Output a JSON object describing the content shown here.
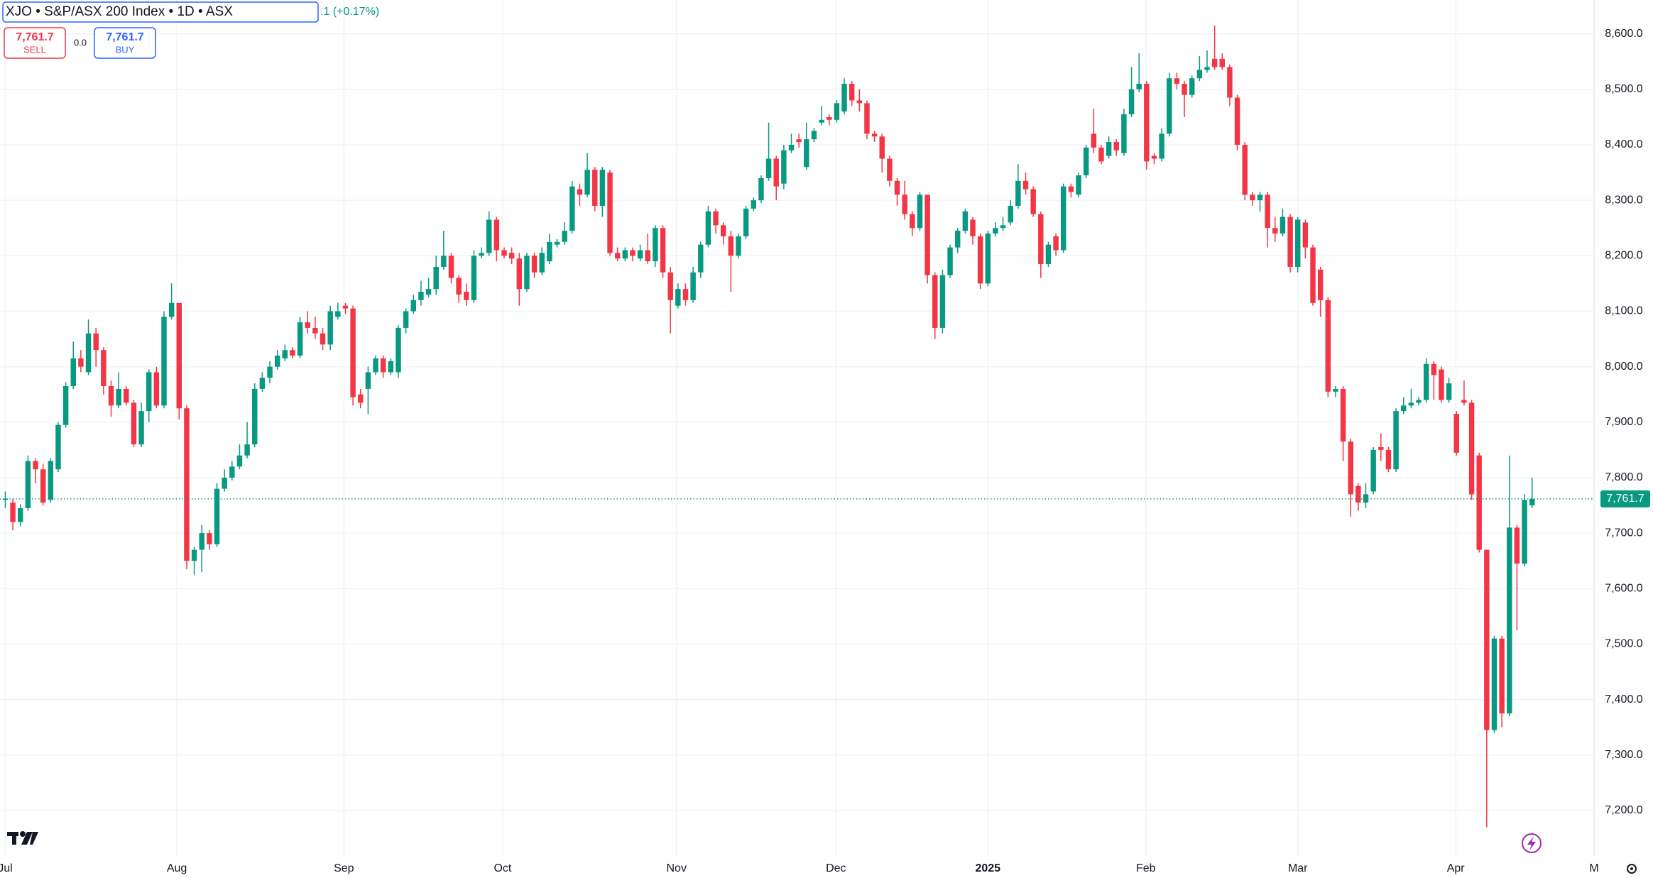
{
  "chart_data": {
    "type": "candlestick",
    "header": {
      "symbol": "XJO • S&P/ASX 200 Index • 1D • ASX",
      "change": ".1 (+0.17%)"
    },
    "sell": {
      "price": {
        "value": 7761.7,
        "label": "7,761.7"
      },
      "label": "SELL"
    },
    "spread": "0.0",
    "buy": {
      "price": {
        "value": 7761.7,
        "label": "7,761.7"
      },
      "label": "BUY"
    },
    "last_price": {
      "value": 7761.7,
      "label": "7,761.7"
    },
    "up_color": "#089981",
    "down_color": "#f23645",
    "grid": true,
    "xlim": [
      -0.7,
      210.2
    ],
    "xticks": [
      {
        "value": 0,
        "label": "Jul"
      },
      {
        "value": 22.7,
        "label": "Aug"
      },
      {
        "value": 44.8,
        "label": "Sep"
      },
      {
        "value": 65.8,
        "label": "Oct"
      },
      {
        "value": 88.8,
        "label": "Nov"
      },
      {
        "value": 109.9,
        "label": "Dec"
      },
      {
        "value": 130,
        "label": "2025"
      },
      {
        "value": 150.9,
        "label": "Feb"
      },
      {
        "value": 171,
        "label": "Mar"
      },
      {
        "value": 191.9,
        "label": "Apr"
      },
      {
        "value": 210.2,
        "label": "M"
      }
    ],
    "ylim": [
      7118,
      8661
    ],
    "yticks": [
      {
        "value": 7200,
        "label": "7,200.0"
      },
      {
        "value": 7300,
        "label": "7,300.0"
      },
      {
        "value": 7400,
        "label": "7,400.0"
      },
      {
        "value": 7500,
        "label": "7,500.0"
      },
      {
        "value": 7600,
        "label": "7,600.0"
      },
      {
        "value": 7700,
        "label": "7,700.0"
      },
      {
        "value": 7800,
        "label": "7,800.0"
      },
      {
        "value": 7900,
        "label": "7,900.0"
      },
      {
        "value": 8000,
        "label": "8,000.0"
      },
      {
        "value": 8100,
        "label": "8,100.0"
      },
      {
        "value": 8200,
        "label": "8,200.0"
      },
      {
        "value": 8300,
        "label": "8,300.0"
      },
      {
        "value": 8400,
        "label": "8,400.0"
      },
      {
        "value": 8500,
        "label": "8,500.0"
      },
      {
        "value": 8600,
        "label": "8,600.0"
      }
    ],
    "open": [
      7760,
      7755,
      7720,
      7745,
      7830,
      7815,
      7760,
      7815,
      7895,
      7965,
      8015,
      7990,
      8060,
      8030,
      7965,
      7930,
      7960,
      7935,
      7860,
      7920,
      7990,
      7930,
      8090,
      8115,
      7925,
      7650,
      7670,
      7700,
      7680,
      7780,
      7800,
      7820,
      7840,
      7860,
      7960,
      7980,
      8000,
      8015,
      8030,
      8020,
      8080,
      8070,
      8060,
      8040,
      8090,
      8110,
      8105,
      7950,
      7960,
      7990,
      8015,
      7990,
      7990,
      8070,
      8100,
      8120,
      8130,
      8140,
      8180,
      8200,
      8160,
      8135,
      8120,
      8200,
      8205,
      8265,
      8210,
      8205,
      8195,
      8140,
      8200,
      8170,
      8190,
      8220,
      8225,
      8245,
      8320,
      8310,
      8355,
      8290,
      8350,
      8205,
      8195,
      8210,
      8195,
      8210,
      8190,
      8250,
      8170,
      8110,
      8140,
      8120,
      8170,
      8220,
      8280,
      8255,
      8235,
      8200,
      8235,
      8285,
      8300,
      8340,
      8375,
      8330,
      8390,
      8410,
      8360,
      8410,
      8440,
      8450,
      8445,
      8460,
      8510,
      8480,
      8475,
      8420,
      8415,
      8375,
      8335,
      8310,
      8275,
      8250,
      8310,
      8165,
      8070,
      8165,
      8215,
      8245,
      8265,
      8235,
      8150,
      8240,
      8250,
      8260,
      8290,
      8335,
      8320,
      8275,
      8185,
      8235,
      8210,
      8325,
      8310,
      8345,
      8420,
      8395,
      8380,
      8405,
      8385,
      8455,
      8500,
      8510,
      8380,
      8375,
      8420,
      8520,
      8510,
      8490,
      8520,
      8535,
      8555,
      8555,
      8540,
      8485,
      8400,
      8310,
      8300,
      8310,
      8250,
      8240,
      8270,
      8180,
      8260,
      8215,
      8175,
      8120,
      7955,
      7960,
      7865,
      7785,
      7755,
      7775,
      7855,
      7850,
      7815,
      7920,
      7930,
      7935,
      7940,
      8005,
      7995,
      7940,
      7915,
      7940,
      7935,
      7840,
      7670,
      7345,
      7510,
      7375,
      7710,
      7645,
      7750
    ],
    "high": [
      7775,
      7762,
      7752,
      7840,
      7835,
      7825,
      7835,
      7900,
      7972,
      8045,
      8030,
      8085,
      8070,
      8035,
      7975,
      7990,
      7965,
      7940,
      7935,
      7995,
      8000,
      8100,
      8150,
      8115,
      7930,
      7675,
      7715,
      7705,
      7790,
      7815,
      7830,
      7860,
      7900,
      7970,
      7990,
      8010,
      8030,
      8040,
      8035,
      8090,
      8100,
      8090,
      8070,
      8110,
      8115,
      8115,
      8110,
      7960,
      8000,
      8020,
      8020,
      8015,
      8075,
      8105,
      8130,
      8155,
      8160,
      8200,
      8245,
      8205,
      8165,
      8150,
      8210,
      8215,
      8280,
      8270,
      8215,
      8215,
      8205,
      8205,
      8205,
      8215,
      8240,
      8230,
      8260,
      8335,
      8330,
      8385,
      8360,
      8360,
      8355,
      8215,
      8215,
      8215,
      8220,
      8240,
      8255,
      8255,
      8180,
      8150,
      8150,
      8180,
      8225,
      8290,
      8285,
      8260,
      8245,
      8240,
      8290,
      8305,
      8345,
      8440,
      8380,
      8400,
      8420,
      8420,
      8440,
      8430,
      8470,
      8455,
      8480,
      8520,
      8515,
      8500,
      8480,
      8425,
      8420,
      8380,
      8340,
      8335,
      8280,
      8315,
      8310,
      8170,
      8175,
      8220,
      8250,
      8285,
      8270,
      8240,
      8245,
      8260,
      8270,
      8300,
      8365,
      8350,
      8325,
      8280,
      8225,
      8240,
      8330,
      8330,
      8350,
      8400,
      8465,
      8400,
      8415,
      8410,
      8465,
      8540,
      8565,
      8515,
      8385,
      8430,
      8530,
      8530,
      8515,
      8525,
      8560,
      8570,
      8615,
      8565,
      8545,
      8490,
      8405,
      8315,
      8315,
      8315,
      8270,
      8285,
      8275,
      8270,
      8265,
      8220,
      8180,
      8125,
      7965,
      7965,
      7870,
      7790,
      7790,
      7855,
      7880,
      7855,
      7925,
      7945,
      7960,
      7945,
      8015,
      8010,
      8000,
      7980,
      7920,
      7975,
      7940,
      7845,
      7670,
      7515,
      7515,
      7840,
      7715,
      7770,
      7800
    ],
    "low": [
      7745,
      7705,
      7712,
      7740,
      7790,
      7750,
      7755,
      7810,
      7890,
      7960,
      7990,
      7985,
      8000,
      7950,
      7910,
      7925,
      7930,
      7855,
      7855,
      7900,
      7925,
      7925,
      8085,
      7905,
      7635,
      7625,
      7630,
      7670,
      7675,
      7775,
      7795,
      7815,
      7835,
      7855,
      7955,
      7970,
      7995,
      8010,
      8015,
      8015,
      8060,
      8050,
      8030,
      8030,
      8085,
      8095,
      7930,
      7925,
      7915,
      7985,
      7980,
      7985,
      7980,
      8060,
      8095,
      8110,
      8125,
      8130,
      8175,
      8150,
      8115,
      8110,
      8115,
      8195,
      8200,
      8190,
      8195,
      8185,
      8110,
      8135,
      8160,
      8165,
      8185,
      8215,
      8220,
      8240,
      8290,
      8305,
      8280,
      8270,
      8200,
      8190,
      8190,
      8190,
      8190,
      8185,
      8180,
      8160,
      8060,
      8105,
      8110,
      8115,
      8160,
      8215,
      8240,
      8220,
      8135,
      8195,
      8230,
      8280,
      8295,
      8335,
      8300,
      8320,
      8385,
      8395,
      8355,
      8405,
      8435,
      8435,
      8440,
      8455,
      8470,
      8460,
      8410,
      8405,
      8350,
      8325,
      8290,
      8265,
      8235,
      8245,
      8150,
      8050,
      8060,
      8160,
      8205,
      8240,
      8220,
      8140,
      8145,
      8235,
      8245,
      8255,
      8285,
      8310,
      8270,
      8160,
      8180,
      8200,
      8205,
      8305,
      8305,
      8340,
      8385,
      8365,
      8375,
      8380,
      8380,
      8450,
      8495,
      8355,
      8365,
      8370,
      8415,
      8500,
      8450,
      8485,
      8515,
      8530,
      8535,
      8535,
      8470,
      8390,
      8300,
      8290,
      8280,
      8215,
      8225,
      8235,
      8170,
      8170,
      8195,
      8110,
      8090,
      7945,
      7945,
      7830,
      7730,
      7740,
      7745,
      7770,
      7830,
      7810,
      7810,
      7915,
      7925,
      7930,
      7935,
      7940,
      7935,
      7935,
      7840,
      7930,
      7760,
      7665,
      7170,
      7340,
      7350,
      7370,
      7525,
      7640,
      7745
    ],
    "close": [
      7762,
      7720,
      7745,
      7830,
      7815,
      7755,
      7830,
      7895,
      7965,
      8015,
      8000,
      8060,
      8030,
      7965,
      7930,
      7960,
      7935,
      7860,
      7920,
      7990,
      7930,
      8090,
      8115,
      7925,
      7650,
      7670,
      7700,
      7680,
      7780,
      7800,
      7820,
      7840,
      7860,
      7960,
      7980,
      8000,
      8020,
      8030,
      8020,
      8080,
      8070,
      8060,
      8040,
      8100,
      8100,
      8105,
      7945,
      7935,
      7990,
      8015,
      7990,
      8010,
      8070,
      8100,
      8120,
      8135,
      8140,
      8180,
      8200,
      8160,
      8130,
      8120,
      8200,
      8205,
      8265,
      8210,
      8200,
      8195,
      8140,
      8200,
      8170,
      8205,
      8225,
      8225,
      8245,
      8325,
      8310,
      8355,
      8290,
      8355,
      8205,
      8195,
      8210,
      8200,
      8210,
      8190,
      8250,
      8170,
      8120,
      8140,
      8120,
      8170,
      8220,
      8280,
      8255,
      8235,
      8200,
      8235,
      8285,
      8300,
      8340,
      8375,
      8325,
      8390,
      8400,
      8405,
      8410,
      8425,
      8445,
      8445,
      8475,
      8510,
      8480,
      8475,
      8420,
      8415,
      8375,
      8335,
      8310,
      8275,
      8250,
      8310,
      8165,
      8070,
      8165,
      8215,
      8245,
      8280,
      8235,
      8150,
      8240,
      8250,
      8255,
      8290,
      8335,
      8320,
      8275,
      8185,
      8220,
      8210,
      8325,
      8315,
      8345,
      8395,
      8395,
      8370,
      8405,
      8390,
      8455,
      8500,
      8510,
      8370,
      8375,
      8420,
      8520,
      8510,
      8490,
      8520,
      8535,
      8540,
      8540,
      8540,
      8485,
      8400,
      8310,
      8300,
      8310,
      8250,
      8240,
      8270,
      8180,
      8265,
      8215,
      8115,
      8120,
      7955,
      7960,
      7865,
      7770,
      7755,
      7770,
      7850,
      7850,
      7815,
      7920,
      7930,
      7935,
      7940,
      8005,
      7985,
      7940,
      7970,
      7845,
      7935,
      7770,
      7670,
      7345,
      7510,
      7375,
      7710,
      7645,
      7760,
      7761.7
    ]
  }
}
